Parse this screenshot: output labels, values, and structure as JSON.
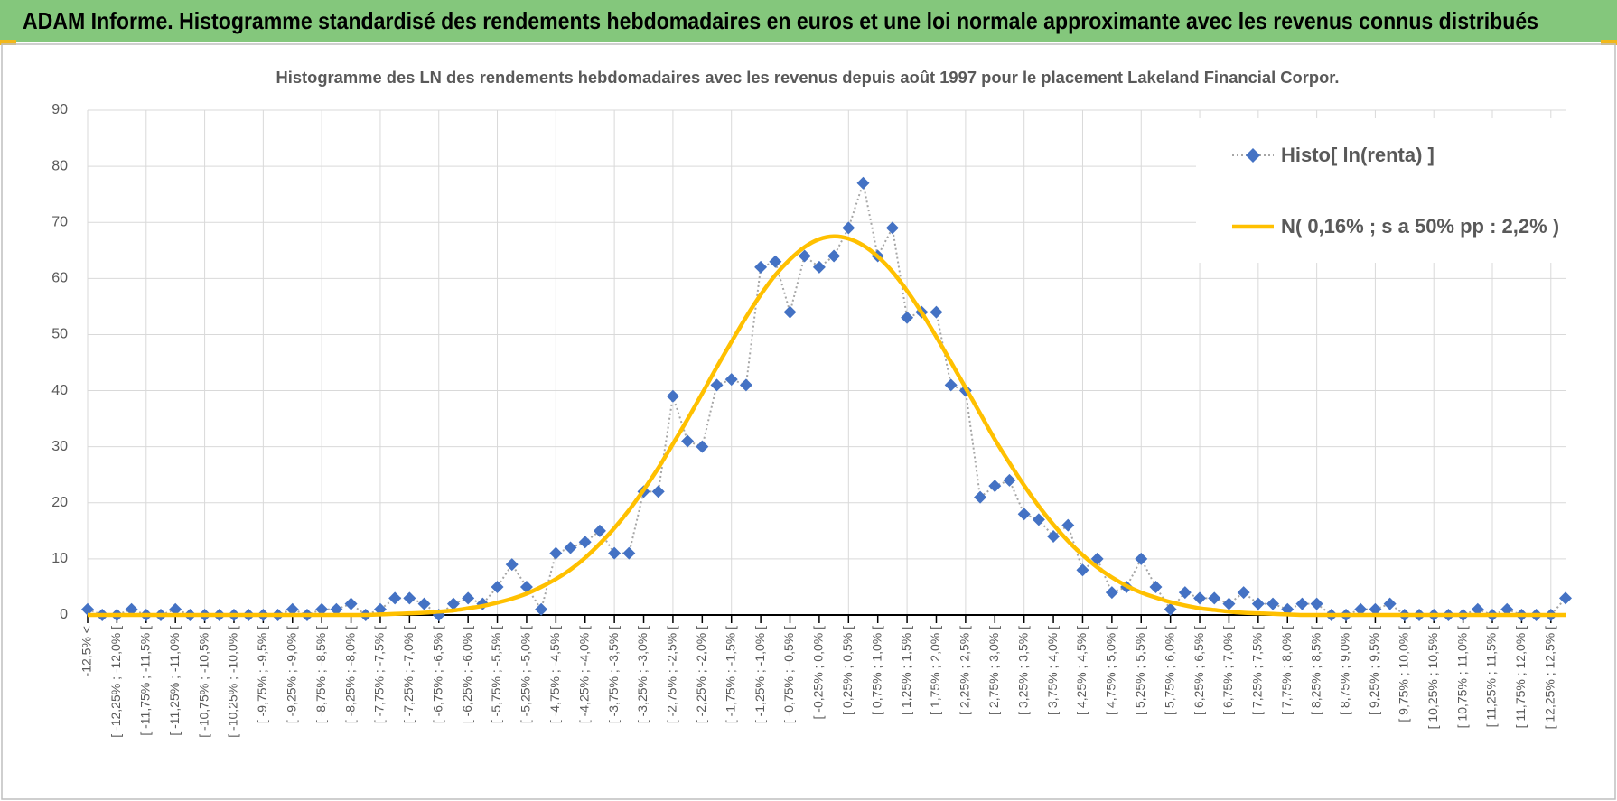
{
  "header": {
    "title": "ADAM Informe. Histogramme standardisé des rendements hebdomadaires en euros et une loi normale approximante avec les revenus connus distribués"
  },
  "chart_data": {
    "type": "line",
    "title": "Histogramme des LN des rendements hebdomadaires avec les revenus depuis août 1997 pour le placement Lakeland Financial Corpor.",
    "categories": [
      "-12,5% <",
      null,
      "[ -12,25% ; -12,0% [",
      null,
      "[ -11,75% ; -11,5% [",
      null,
      "[ -11,25% ; -11,0% [",
      null,
      "[ -10,75% ; -10,5% [",
      null,
      "[ -10,25% ; -10,0% [",
      null,
      "[ -9,75% ; -9,5% [",
      null,
      "[ -9,25% ; -9,0% [",
      null,
      "[ -8,75% ; -8,5% [",
      null,
      "[ -8,25% ; -8,0% [",
      null,
      "[ -7,75% ; -7,5% [",
      null,
      "[ -7,25% ; -7,0% [",
      null,
      "[ -6,75% ; -6,5% [",
      null,
      "[ -6,25% ; -6,0% [",
      null,
      "[ -5,75% ; -5,5% [",
      null,
      "[ -5,25% ; -5,0% [",
      null,
      "[ -4,75% ; -4,5% [",
      null,
      "[ -4,25% ; -4,0% [",
      null,
      "[ -3,75% ; -3,5% [",
      null,
      "[ -3,25% ; -3,0% [",
      null,
      "[ -2,75% ; -2,5% [",
      null,
      "[ -2,25% ; -2,0% [",
      null,
      "[ -1,75% ; -1,5% [",
      null,
      "[ -1,25% ; -1,0% [",
      null,
      "[ -0,75% ; -0,5% [",
      null,
      "[ -0,25% ; 0,0% [",
      null,
      "[ 0,25% ; 0,5% [",
      null,
      "[ 0,75% ; 1,0% [",
      null,
      "[ 1,25% ; 1,5% [",
      null,
      "[ 1,75% ; 2,0% [",
      null,
      "[ 2,25% ; 2,5% [",
      null,
      "[ 2,75% ; 3,0% [",
      null,
      "[ 3,25% ; 3,5% [",
      null,
      "[ 3,75% ; 4,0% [",
      null,
      "[ 4,25% ; 4,5% [",
      null,
      "[ 4,75% ; 5,0% [",
      null,
      "[ 5,25% ; 5,5% [",
      null,
      "[ 5,75% ; 6,0% [",
      null,
      "[ 6,25% ; 6,5% [",
      null,
      "[ 6,75% ; 7,0% [",
      null,
      "[ 7,25% ; 7,5% [",
      null,
      "[ 7,75% ; 8,0% [",
      null,
      "[ 8,25% ; 8,5% [",
      null,
      "[ 8,75% ; 9,0% [",
      null,
      "[ 9,25% ; 9,5% [",
      null,
      "[ 9,75% ; 10,0% [",
      null,
      "[ 10,25% ; 10,5% [",
      null,
      "[ 10,75% ; 11,0% [",
      null,
      "[ 11,25% ; 11,5% [",
      null,
      "[ 11,75% ; 12,0% [",
      null,
      "[ 12,25% ; 12,5% [",
      null
    ],
    "series": [
      {
        "name": "Histo[ ln(renta) ]",
        "color": "#4472c4",
        "line_color": "#a6a6a6",
        "marker": "diamond",
        "dash": "dotted",
        "values": [
          1,
          0,
          0,
          1,
          0,
          0,
          1,
          0,
          0,
          0,
          0,
          0,
          0,
          0,
          1,
          0,
          1,
          1,
          2,
          0,
          1,
          3,
          3,
          2,
          0,
          2,
          3,
          2,
          5,
          9,
          5,
          1,
          11,
          12,
          13,
          15,
          11,
          11,
          22,
          22,
          39,
          31,
          30,
          41,
          42,
          41,
          62,
          63,
          54,
          64,
          62,
          64,
          69,
          77,
          64,
          69,
          53,
          54,
          54,
          41,
          40,
          21,
          23,
          24,
          18,
          17,
          14,
          16,
          8,
          10,
          4,
          5,
          10,
          5,
          1,
          4,
          3,
          3,
          2,
          4,
          2,
          2,
          1,
          2,
          2,
          0,
          0,
          1,
          1,
          2,
          0,
          0,
          0,
          0,
          0,
          1,
          0,
          1,
          0,
          0,
          0,
          3
        ]
      },
      {
        "name": "N( 0,16% ; s a 50% pp : 2,2% )",
        "color": "#ffc000",
        "smooth": true,
        "values": [
          0,
          0,
          0,
          0,
          0,
          0,
          0,
          0,
          0,
          0,
          0,
          0,
          0,
          0,
          0,
          0,
          0,
          0,
          0,
          0,
          0.1,
          0.2,
          0.3,
          0.4,
          0.6,
          0.8,
          1.2,
          1.6,
          2.2,
          2.9,
          3.8,
          5.0,
          6.4,
          8.1,
          10.2,
          12.7,
          15.5,
          18.7,
          22.3,
          26.2,
          30.5,
          34.9,
          39.5,
          44.2,
          48.7,
          53.1,
          57.1,
          60.6,
          63.4,
          65.6,
          67.0,
          67.5,
          67.1,
          65.9,
          63.9,
          61.2,
          57.8,
          53.9,
          49.6,
          45.1,
          40.5,
          35.9,
          31.3,
          27.1,
          23.1,
          19.4,
          16.1,
          13.2,
          10.7,
          8.5,
          6.7,
          5.2,
          4.0,
          3.1,
          2.3,
          1.7,
          1.2,
          0.9,
          0.6,
          0.4,
          0.3,
          0.2,
          0.1,
          0,
          0,
          0,
          0,
          0,
          0,
          0,
          0,
          0,
          0,
          0,
          0,
          0,
          0,
          0,
          0,
          0,
          0,
          0
        ]
      }
    ],
    "ylim": [
      0,
      90
    ],
    "yticks": [
      0,
      10,
      20,
      30,
      40,
      50,
      60,
      70,
      80,
      90
    ],
    "grid": true,
    "legend": "top-right"
  }
}
